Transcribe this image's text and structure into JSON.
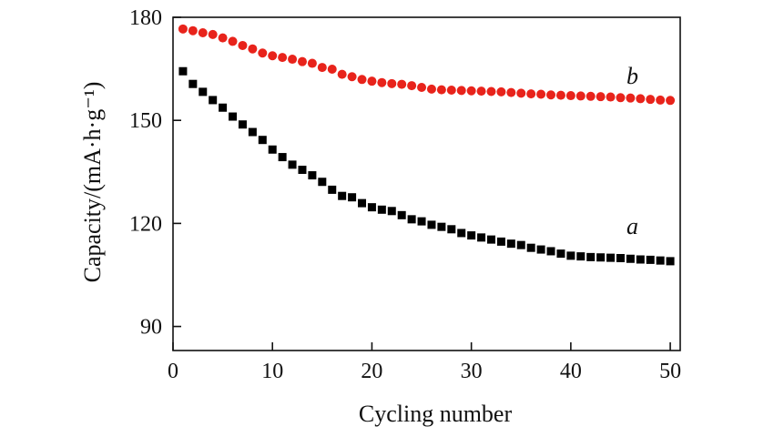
{
  "chart_data": {
    "type": "scatter",
    "title": "",
    "xlabel": "Cycling number",
    "ylabel": "Capacity/(mA·h·g⁻¹)",
    "xlim": [
      0,
      51
    ],
    "ylim": [
      83,
      180
    ],
    "xticks": [
      0,
      10,
      20,
      30,
      40,
      50
    ],
    "yticks": [
      90,
      120,
      150,
      180
    ],
    "grid": false,
    "x": [
      1,
      2,
      3,
      4,
      5,
      6,
      7,
      8,
      9,
      10,
      11,
      12,
      13,
      14,
      15,
      16,
      17,
      18,
      19,
      20,
      21,
      22,
      23,
      24,
      25,
      26,
      27,
      28,
      29,
      30,
      31,
      32,
      33,
      34,
      35,
      36,
      37,
      38,
      39,
      40,
      41,
      42,
      43,
      44,
      45,
      46,
      47,
      48,
      49,
      50
    ],
    "series": [
      {
        "name": "a",
        "marker": "square",
        "color": "#000000",
        "values": [
          164.3,
          160.6,
          158.3,
          155.9,
          153.7,
          151.1,
          148.8,
          146.6,
          144.3,
          141.5,
          139.3,
          137.1,
          135.6,
          134.0,
          132.1,
          129.8,
          128.0,
          127.6,
          125.9,
          124.7,
          124.0,
          123.6,
          122.4,
          121.2,
          120.6,
          119.6,
          119.0,
          118.3,
          117.2,
          116.5,
          115.9,
          115.3,
          114.7,
          114.1,
          113.7,
          112.9,
          112.4,
          111.9,
          111.2,
          110.6,
          110.4,
          110.2,
          110.1,
          110.0,
          109.9,
          109.7,
          109.5,
          109.4,
          109.2,
          109.0
        ]
      },
      {
        "name": "b",
        "marker": "circle",
        "color": "#e8231b",
        "values": [
          176.6,
          176.1,
          175.5,
          175.0,
          174.0,
          173.0,
          171.8,
          170.8,
          169.6,
          168.8,
          168.3,
          167.8,
          167.1,
          166.6,
          165.4,
          164.9,
          163.4,
          162.7,
          161.9,
          161.4,
          161.0,
          160.7,
          160.5,
          160.1,
          159.6,
          159.1,
          158.9,
          158.8,
          158.7,
          158.6,
          158.5,
          158.4,
          158.3,
          158.1,
          157.9,
          157.7,
          157.6,
          157.4,
          157.3,
          157.2,
          157.1,
          157.0,
          156.9,
          156.8,
          156.6,
          156.5,
          156.3,
          156.1,
          155.9,
          155.8
        ]
      }
    ]
  }
}
